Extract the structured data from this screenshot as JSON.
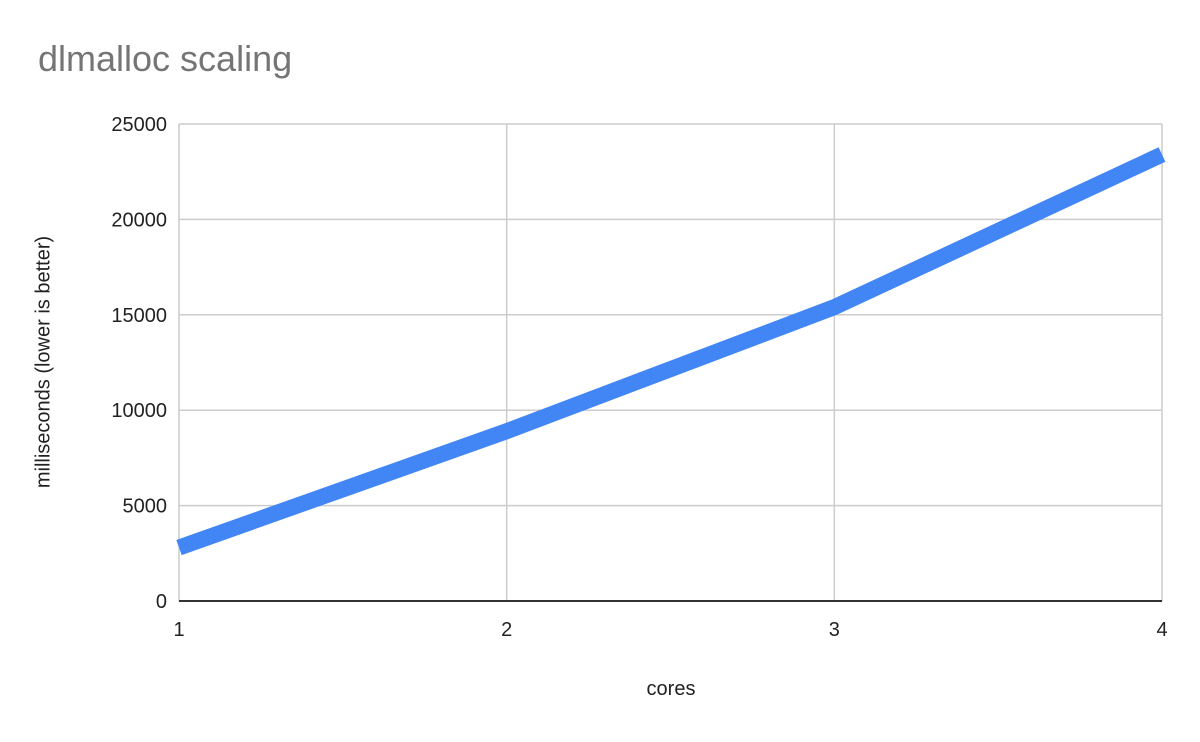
{
  "chart_data": {
    "type": "line",
    "title": "dlmalloc scaling",
    "xlabel": "cores",
    "ylabel": "milliseconds (lower is better)",
    "x": [
      1,
      2,
      3,
      4
    ],
    "x_tick_labels": [
      "1",
      "2",
      "3",
      "4"
    ],
    "y_tick_labels": [
      "0",
      "5000",
      "10000",
      "15000",
      "20000",
      "25000"
    ],
    "ylim": [
      0,
      25000
    ],
    "xlim": [
      1,
      4
    ],
    "grid": true,
    "legend": "none",
    "series": [
      {
        "values": [
          2800,
          8900,
          15400,
          23400
        ],
        "color": "#4285f4"
      }
    ]
  }
}
